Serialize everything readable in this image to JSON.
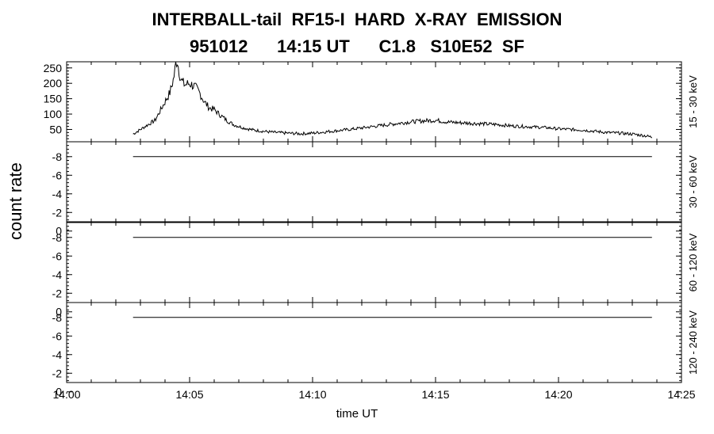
{
  "chart_data": {
    "type": "line",
    "title": "INTERBALL-tail  RF15-I  HARD  X-RAY  EMISSION",
    "subtitle": "951012      14:15 UT      C1.8   S10E52  SF",
    "ylabel": "count rate",
    "xlabel": "time UT",
    "xlim": [
      0,
      25
    ],
    "x_tick_labels": [
      "14:00",
      "14:05",
      "14:10",
      "14:15",
      "14:20",
      "14:25"
    ],
    "x_ticks": [
      0,
      5,
      10,
      15,
      20,
      25
    ],
    "grid": false,
    "panels": [
      {
        "band": "15 - 30 keV",
        "ylim": [
          10,
          270
        ],
        "y_ticks": [
          50,
          100,
          150,
          200,
          250
        ],
        "y_tick_labels": [
          "50",
          "100",
          "150",
          "200",
          "250"
        ],
        "series": {
          "x": [
            2.7,
            3.0,
            3.3,
            3.6,
            3.8,
            4.0,
            4.2,
            4.35,
            4.45,
            4.5,
            4.55,
            4.65,
            4.8,
            5.0,
            5.2,
            5.4,
            5.6,
            5.8,
            6.0,
            6.2,
            6.5,
            6.8,
            7.2,
            7.6,
            8.0,
            8.5,
            9.0,
            9.5,
            10.0,
            10.5,
            11.0,
            11.5,
            12.0,
            12.5,
            13.0,
            13.5,
            14.0,
            14.5,
            15.0,
            15.5,
            16.0,
            16.5,
            17.0,
            17.5,
            18.0,
            18.5,
            19.0,
            19.5,
            20.0,
            20.5,
            21.0,
            21.5,
            22.0,
            22.5,
            23.0,
            23.5,
            23.8
          ],
          "y": [
            35,
            50,
            65,
            80,
            110,
            140,
            170,
            215,
            270,
            275,
            250,
            210,
            195,
            200,
            190,
            170,
            140,
            120,
            115,
            100,
            80,
            65,
            55,
            48,
            44,
            40,
            38,
            36,
            38,
            42,
            46,
            50,
            55,
            60,
            65,
            70,
            75,
            78,
            80,
            74,
            72,
            70,
            68,
            66,
            62,
            60,
            58,
            56,
            52,
            50,
            48,
            44,
            40,
            38,
            35,
            30,
            25
          ]
        }
      },
      {
        "band": "30 - 60 keV",
        "ylim": [
          -1,
          -9.6
        ],
        "y_ticks": [
          -8,
          -6,
          -4,
          -2,
          0
        ],
        "y_tick_labels": [
          "-8",
          "-6",
          "-4",
          "-2",
          "0"
        ],
        "series": {
          "x": [
            2.7,
            23.8
          ],
          "y": [
            -8,
            -8
          ]
        }
      },
      {
        "band": "60 - 120 keV",
        "ylim": [
          -1,
          -9.6
        ],
        "y_ticks": [
          -8,
          -6,
          -4,
          -2,
          0
        ],
        "y_tick_labels": [
          "-8",
          "-6",
          "-4",
          "-2",
          "0"
        ],
        "series": {
          "x": [
            2.7,
            23.8
          ],
          "y": [
            -8,
            -8
          ]
        }
      },
      {
        "band": "120 - 240 keV",
        "ylim": [
          -1,
          -9.6
        ],
        "y_ticks": [
          -8,
          -6,
          -4,
          -2,
          0
        ],
        "y_tick_labels": [
          "-8",
          "-6",
          "-4",
          "-2",
          "0"
        ],
        "series": {
          "x": [
            2.7,
            23.8
          ],
          "y": [
            -8,
            -8
          ]
        }
      }
    ]
  }
}
